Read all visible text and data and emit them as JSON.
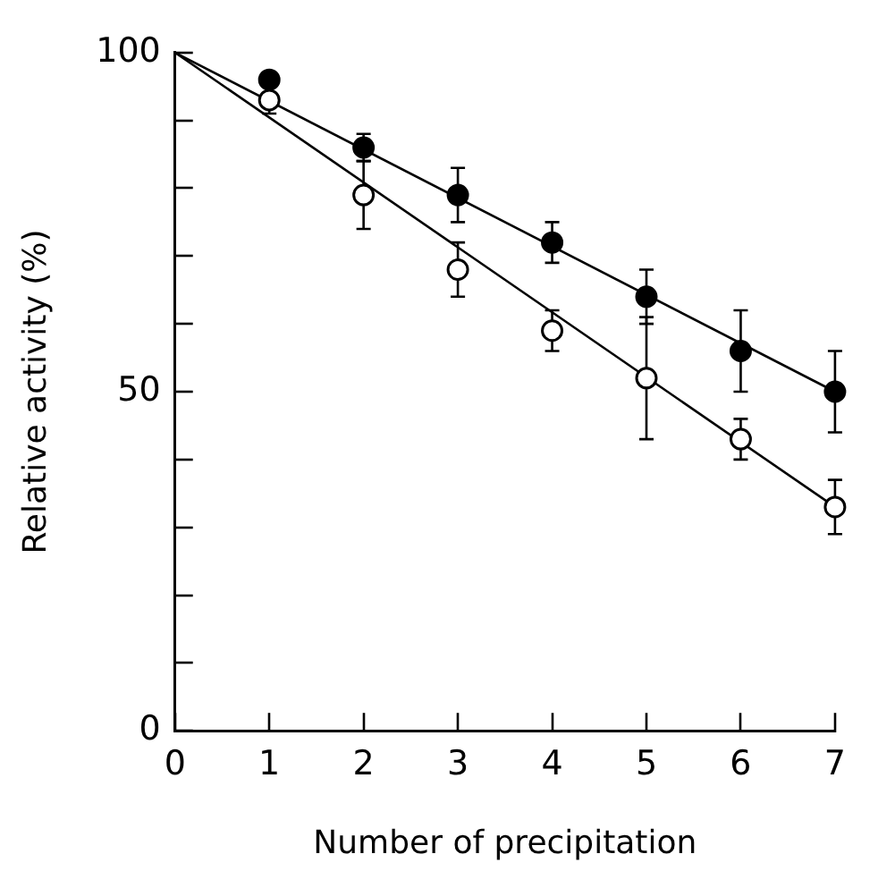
{
  "chart_data": {
    "type": "scatter",
    "xlabel": "Number of precipitation",
    "ylabel": "Relative activity (%)",
    "xlim": [
      0,
      7
    ],
    "xticks": [
      0,
      1,
      2,
      3,
      4,
      5,
      6,
      7
    ],
    "ylim": [
      0,
      100
    ],
    "yticks": [
      0,
      {
        "value": 10,
        "label": null
      },
      {
        "value": 20,
        "label": null
      },
      {
        "value": 30,
        "label": null
      },
      {
        "value": 40,
        "label": null
      },
      50,
      {
        "value": 60,
        "label": null
      },
      {
        "value": 70,
        "label": null
      },
      {
        "value": 80,
        "label": null
      },
      {
        "value": 90,
        "label": null
      },
      100
    ],
    "grid": false,
    "legend": false,
    "marker": "circle",
    "series": [
      {
        "type": "line",
        "color": "#000000",
        "x": [
          0,
          7
        ],
        "values": [
          100,
          50
        ],
        "marker": "none"
      },
      {
        "type": "line",
        "color": "#000000",
        "x": [
          0,
          7
        ],
        "values": [
          100,
          33
        ],
        "marker": "none"
      },
      {
        "color": "#000000",
        "x": [
          1,
          2,
          3,
          4,
          5,
          6,
          7
        ],
        "values": [
          96,
          86,
          79,
          72,
          64,
          56,
          50
        ],
        "errors": [
          null,
          2,
          4,
          3,
          4,
          6,
          6
        ]
      },
      {
        "color": "#ffffff",
        "x": [
          1,
          2,
          3,
          4,
          5,
          6,
          7
        ],
        "values": [
          93,
          79,
          68,
          59,
          52,
          43,
          33
        ],
        "errors": [
          2,
          5,
          4,
          3,
          9,
          3,
          4
        ]
      }
    ]
  }
}
